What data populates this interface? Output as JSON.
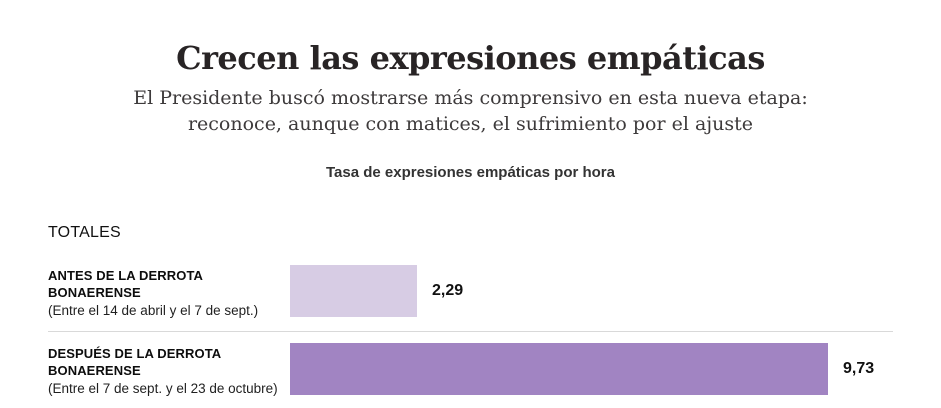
{
  "header": {
    "title": "Crecen las expresiones empáticas",
    "subtitle_line1": "El Presidente buscó mostrarse más comprensivo en esta nueva etapa:",
    "subtitle_line2": "reconoce, aunque con matices, el sufrimiento por el ajuste",
    "chart_subtitle": "Tasa de expresiones empáticas por hora"
  },
  "chart_data": {
    "type": "bar",
    "orientation": "horizontal",
    "title": "Tasa de expresiones empáticas por hora",
    "section_label": "TOTALES",
    "categories": [
      "ANTES DE LA DERROTA BONAERENSE (Entre el 14 de abril y el 7 de sept.)",
      "DESPUÉS DE LA DERROTA BONAERENSE (Entre el 7 de sept. y el 23 de octubre)"
    ],
    "values": [
      2.29,
      9.73
    ],
    "xlim": [
      0,
      9.73
    ],
    "grid": false,
    "legend": "none",
    "value_labels_shown": true,
    "rows": [
      {
        "label_line1": "ANTES DE LA DERROTA",
        "label_line2": "BONAERENSE",
        "label_note": "(Entre el 14 de abril y el 7 de sept.)",
        "value": 2.29,
        "value_label": "2,29",
        "bar_color": "#d7cce4"
      },
      {
        "label_line1": "DESPUÉS DE LA DERROTA",
        "label_line2": "BONAERENSE",
        "label_note": "(Entre el 7 de sept. y el 23 de octubre)",
        "value": 9.73,
        "value_label": "9,73",
        "bar_color": "#a184c2"
      }
    ],
    "colors": {
      "bar_before": "#d7cce4",
      "bar_after": "#a184c2",
      "divider": "#d9d9d9",
      "text": "#111111"
    }
  }
}
